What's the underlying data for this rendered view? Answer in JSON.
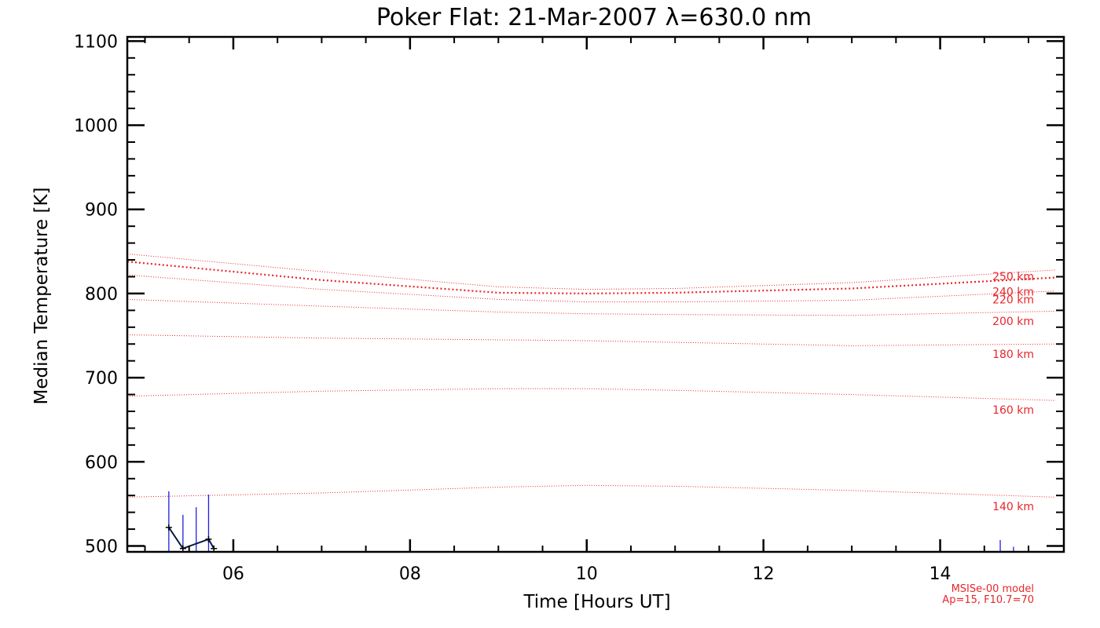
{
  "chart_data": {
    "type": "line",
    "title": "Poker Flat: 21-Mar-2007 λ=630.0 nm",
    "xlabel": "Time [Hours UT]",
    "ylabel": "Median Temperature [K]",
    "xlim": [
      4.8,
      15.4
    ],
    "ylim": [
      493,
      1105
    ],
    "x_ticks": [
      6,
      8,
      10,
      12,
      14
    ],
    "x_tick_labels": [
      "06",
      "08",
      "10",
      "12",
      "14"
    ],
    "y_ticks": [
      500,
      600,
      700,
      800,
      900,
      1000,
      1100
    ],
    "y_tick_labels": [
      "500",
      "600",
      "700",
      "800",
      "900",
      "1000",
      "1100"
    ],
    "grid": false,
    "model_curves": [
      {
        "label": "140 km",
        "x": [
          4.8,
          7,
          9,
          10,
          11,
          13,
          15.3
        ],
        "y": [
          558,
          563,
          570,
          572,
          571,
          566,
          558
        ]
      },
      {
        "label": "160 km",
        "x": [
          4.8,
          7,
          9,
          10,
          11,
          13,
          15.3
        ],
        "y": [
          678,
          684,
          687,
          687,
          685,
          680,
          673
        ]
      },
      {
        "label": "180 km",
        "x": [
          4.8,
          7,
          9,
          10,
          11,
          13,
          15.3
        ],
        "y": [
          751,
          747,
          745,
          744,
          742,
          738,
          740
        ]
      },
      {
        "label": "200 km",
        "x": [
          4.8,
          7,
          9,
          10,
          11,
          13,
          15.3
        ],
        "y": [
          793,
          785,
          778,
          776,
          775,
          774,
          779
        ]
      },
      {
        "label": "220 km",
        "x": [
          4.8,
          7,
          9,
          10,
          11,
          13,
          15.3
        ],
        "y": [
          822,
          805,
          793,
          790,
          790,
          792,
          803
        ]
      },
      {
        "label": "240 km",
        "x": [
          4.8,
          7,
          9,
          10,
          11,
          13,
          15.3
        ],
        "y": [
          838,
          816,
          801,
          800,
          801,
          806,
          819
        ]
      },
      {
        "label": "250 km",
        "x": [
          4.8,
          7,
          9,
          10,
          11,
          13,
          15.3
        ],
        "y": [
          847,
          826,
          808,
          805,
          806,
          813,
          828
        ]
      }
    ],
    "measurements": {
      "color": "#1f1fe0",
      "bars": [
        {
          "x": 5.27,
          "low": 493,
          "high": 565
        },
        {
          "x": 5.43,
          "low": 493,
          "high": 537
        },
        {
          "x": 5.58,
          "low": 493,
          "high": 546
        },
        {
          "x": 5.72,
          "low": 493,
          "high": 561
        },
        {
          "x": 14.68,
          "low": 493,
          "high": 507
        },
        {
          "x": 14.83,
          "low": 493,
          "high": 499
        }
      ],
      "points": [
        {
          "x": 5.27,
          "y": 522
        },
        {
          "x": 5.43,
          "y": 497
        },
        {
          "x": 5.72,
          "y": 508
        },
        {
          "x": 5.78,
          "y": 497
        }
      ]
    },
    "annotations": [
      "MSISe-00 model",
      "Ap=15, F10.7=70"
    ]
  }
}
